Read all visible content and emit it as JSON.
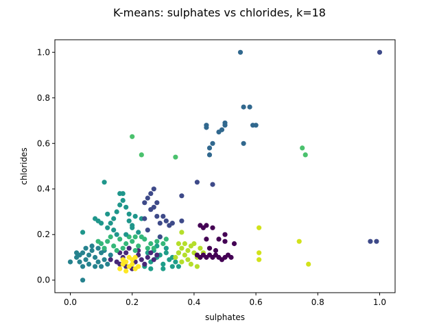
{
  "chart_data": {
    "type": "scatter",
    "title": "K-means: sulphates vs chlorides, k=18",
    "xlabel": "sulphates",
    "ylabel": "chlorides",
    "xlim": [
      -0.05,
      1.05
    ],
    "ylim": [
      -0.055,
      1.055
    ],
    "xticks": [
      {
        "value": 0.0,
        "label": "0.0"
      },
      {
        "value": 0.2,
        "label": "0.2"
      },
      {
        "value": 0.4,
        "label": "0.4"
      },
      {
        "value": 0.6,
        "label": "0.6"
      },
      {
        "value": 0.8,
        "label": "0.8"
      },
      {
        "value": 1.0,
        "label": "1.0"
      }
    ],
    "yticks": [
      {
        "value": 0.0,
        "label": "0.0"
      },
      {
        "value": 0.2,
        "label": "0.2"
      },
      {
        "value": 0.4,
        "label": "0.4"
      },
      {
        "value": 0.6,
        "label": "0.6"
      },
      {
        "value": 0.8,
        "label": "0.8"
      },
      {
        "value": 1.0,
        "label": "1.0"
      }
    ],
    "grid": false,
    "legend": "none",
    "clusters": [
      {
        "color": "#1f9e89",
        "points": [
          [
            0.24,
            0.06
          ],
          [
            0.26,
            0.08
          ],
          [
            0.28,
            0.1
          ],
          [
            0.3,
            0.07
          ],
          [
            0.32,
            0.09
          ],
          [
            0.25,
            0.12
          ],
          [
            0.27,
            0.13
          ],
          [
            0.29,
            0.11
          ],
          [
            0.31,
            0.12
          ],
          [
            0.33,
            0.1
          ],
          [
            0.34,
            0.08
          ],
          [
            0.35,
            0.12
          ],
          [
            0.26,
            0.05
          ],
          [
            0.3,
            0.05
          ],
          [
            0.33,
            0.06
          ],
          [
            0.28,
            0.15
          ],
          [
            0.31,
            0.14
          ],
          [
            0.35,
            0.06
          ]
        ]
      },
      {
        "color": "#482878",
        "points": [
          [
            0.16,
            0.07
          ],
          [
            0.17,
            0.1
          ],
          [
            0.18,
            0.12
          ],
          [
            0.15,
            0.08
          ],
          [
            0.2,
            0.05
          ],
          [
            0.21,
            0.08
          ],
          [
            0.22,
            0.11
          ],
          [
            0.23,
            0.09
          ],
          [
            0.25,
            0.1
          ],
          [
            0.24,
            0.07
          ],
          [
            0.26,
            0.12
          ],
          [
            0.22,
            0.13
          ],
          [
            0.27,
            0.09
          ],
          [
            0.19,
            0.14
          ],
          [
            0.16,
            0.12
          ],
          [
            0.18,
            0.06
          ],
          [
            0.13,
            0.09
          ],
          [
            0.28,
            0.11
          ]
        ]
      },
      {
        "color": "#fde725",
        "points": [
          [
            0.16,
            0.05
          ],
          [
            0.17,
            0.07
          ],
          [
            0.18,
            0.08
          ],
          [
            0.19,
            0.06
          ],
          [
            0.2,
            0.07
          ],
          [
            0.21,
            0.05
          ],
          [
            0.18,
            0.04
          ],
          [
            0.2,
            0.09
          ],
          [
            0.22,
            0.06
          ],
          [
            0.19,
            0.1
          ],
          [
            0.17,
            0.09
          ],
          [
            0.21,
            0.1
          ]
        ]
      },
      {
        "color": "#26828e",
        "points": [
          [
            0.0,
            0.08
          ],
          [
            0.03,
            0.08
          ],
          [
            0.02,
            0.1
          ],
          [
            0.04,
            0.12
          ],
          [
            0.05,
            0.09
          ],
          [
            0.06,
            0.11
          ],
          [
            0.07,
            0.13
          ],
          [
            0.08,
            0.1
          ],
          [
            0.09,
            0.08
          ],
          [
            0.1,
            0.12
          ],
          [
            0.11,
            0.09
          ],
          [
            0.12,
            0.07
          ],
          [
            0.04,
            0.06
          ],
          [
            0.06,
            0.07
          ],
          [
            0.08,
            0.06
          ],
          [
            0.1,
            0.06
          ],
          [
            0.05,
            0.14
          ],
          [
            0.07,
            0.15
          ],
          [
            0.09,
            0.14
          ],
          [
            0.11,
            0.13
          ],
          [
            0.13,
            0.11
          ],
          [
            0.03,
            0.11
          ],
          [
            0.02,
            0.12
          ],
          [
            0.04,
            0.0
          ]
        ]
      },
      {
        "color": "#35b779",
        "points": [
          [
            0.1,
            0.16
          ],
          [
            0.12,
            0.17
          ],
          [
            0.14,
            0.15
          ],
          [
            0.16,
            0.18
          ],
          [
            0.18,
            0.16
          ],
          [
            0.2,
            0.17
          ],
          [
            0.22,
            0.15
          ],
          [
            0.24,
            0.18
          ],
          [
            0.26,
            0.16
          ],
          [
            0.28,
            0.17
          ],
          [
            0.3,
            0.16
          ],
          [
            0.13,
            0.19
          ],
          [
            0.17,
            0.14
          ],
          [
            0.21,
            0.13
          ],
          [
            0.25,
            0.14
          ],
          [
            0.09,
            0.17
          ],
          [
            0.29,
            0.19
          ],
          [
            0.19,
            0.19
          ],
          [
            0.23,
            0.19
          ],
          [
            0.15,
            0.13
          ],
          [
            0.27,
            0.14
          ],
          [
            0.11,
            0.14
          ],
          [
            0.31,
            0.18
          ],
          [
            0.21,
            0.19
          ]
        ]
      },
      {
        "color": "#b5de2b",
        "points": [
          [
            0.34,
            0.1
          ],
          [
            0.35,
            0.12
          ],
          [
            0.36,
            0.14
          ],
          [
            0.37,
            0.11
          ],
          [
            0.38,
            0.13
          ],
          [
            0.39,
            0.15
          ],
          [
            0.4,
            0.12
          ],
          [
            0.36,
            0.08
          ],
          [
            0.38,
            0.09
          ],
          [
            0.41,
            0.1
          ],
          [
            0.42,
            0.14
          ],
          [
            0.35,
            0.16
          ],
          [
            0.37,
            0.16
          ],
          [
            0.39,
            0.07
          ],
          [
            0.4,
            0.16
          ],
          [
            0.36,
            0.21
          ],
          [
            0.41,
            0.06
          ],
          [
            0.43,
            0.12
          ]
        ]
      },
      {
        "color": "#440154",
        "points": [
          [
            0.41,
            0.11
          ],
          [
            0.42,
            0.1
          ],
          [
            0.43,
            0.11
          ],
          [
            0.44,
            0.1
          ],
          [
            0.45,
            0.11
          ],
          [
            0.46,
            0.1
          ],
          [
            0.47,
            0.11
          ],
          [
            0.48,
            0.1
          ],
          [
            0.49,
            0.09
          ],
          [
            0.5,
            0.1
          ],
          [
            0.51,
            0.11
          ],
          [
            0.52,
            0.1
          ],
          [
            0.45,
            0.14
          ],
          [
            0.48,
            0.18
          ],
          [
            0.5,
            0.2
          ],
          [
            0.53,
            0.16
          ],
          [
            0.44,
            0.18
          ],
          [
            0.47,
            0.13
          ],
          [
            0.5,
            0.17
          ],
          [
            0.42,
            0.24
          ],
          [
            0.43,
            0.23
          ],
          [
            0.44,
            0.24
          ],
          [
            0.46,
            0.23
          ]
        ]
      },
      {
        "color": "#1f968b",
        "points": [
          [
            0.08,
            0.27
          ],
          [
            0.09,
            0.26
          ],
          [
            0.1,
            0.25
          ],
          [
            0.12,
            0.29
          ],
          [
            0.13,
            0.25
          ],
          [
            0.14,
            0.27
          ],
          [
            0.15,
            0.3
          ],
          [
            0.16,
            0.33
          ],
          [
            0.17,
            0.38
          ],
          [
            0.16,
            0.38
          ],
          [
            0.17,
            0.35
          ],
          [
            0.18,
            0.32
          ],
          [
            0.19,
            0.29
          ],
          [
            0.2,
            0.24
          ],
          [
            0.19,
            0.26
          ],
          [
            0.21,
            0.28
          ],
          [
            0.22,
            0.21
          ],
          [
            0.23,
            0.27
          ],
          [
            0.14,
            0.22
          ],
          [
            0.12,
            0.23
          ],
          [
            0.18,
            0.2
          ],
          [
            0.15,
            0.2
          ],
          [
            0.04,
            0.21
          ],
          [
            0.11,
            0.43
          ],
          [
            0.2,
            0.23
          ]
        ]
      },
      {
        "color": "#3e4a89",
        "points": [
          [
            0.24,
            0.34
          ],
          [
            0.25,
            0.36
          ],
          [
            0.26,
            0.38
          ],
          [
            0.27,
            0.4
          ],
          [
            0.28,
            0.34
          ],
          [
            0.27,
            0.32
          ],
          [
            0.26,
            0.31
          ],
          [
            0.28,
            0.28
          ],
          [
            0.29,
            0.25
          ],
          [
            0.3,
            0.28
          ],
          [
            0.31,
            0.26
          ],
          [
            0.32,
            0.24
          ],
          [
            0.33,
            0.25
          ],
          [
            0.36,
            0.26
          ],
          [
            0.36,
            0.37
          ],
          [
            0.24,
            0.27
          ],
          [
            0.25,
            0.22
          ],
          [
            0.29,
            0.19
          ],
          [
            0.41,
            0.43
          ],
          [
            0.46,
            0.42
          ],
          [
            0.97,
            0.17
          ],
          [
            0.99,
            0.17
          ],
          [
            1.0,
            1.0
          ]
        ]
      },
      {
        "color": "#31688e",
        "points": [
          [
            0.44,
            0.67
          ],
          [
            0.44,
            0.68
          ],
          [
            0.45,
            0.55
          ],
          [
            0.45,
            0.58
          ],
          [
            0.46,
            0.6
          ],
          [
            0.48,
            0.65
          ],
          [
            0.49,
            0.66
          ],
          [
            0.5,
            0.68
          ],
          [
            0.5,
            0.69
          ],
          [
            0.56,
            0.6
          ],
          [
            0.56,
            0.76
          ],
          [
            0.58,
            0.76
          ],
          [
            0.59,
            0.68
          ],
          [
            0.6,
            0.68
          ],
          [
            0.55,
            1.0
          ]
        ]
      },
      {
        "color": "#4ac16d",
        "points": [
          [
            0.2,
            0.63
          ],
          [
            0.23,
            0.55
          ],
          [
            0.34,
            0.54
          ],
          [
            0.75,
            0.58
          ],
          [
            0.76,
            0.55
          ]
        ]
      },
      {
        "color": "#d2e21b",
        "points": [
          [
            0.61,
            0.23
          ],
          [
            0.61,
            0.12
          ],
          [
            0.61,
            0.09
          ],
          [
            0.74,
            0.17
          ],
          [
            0.77,
            0.07
          ]
        ]
      }
    ]
  }
}
